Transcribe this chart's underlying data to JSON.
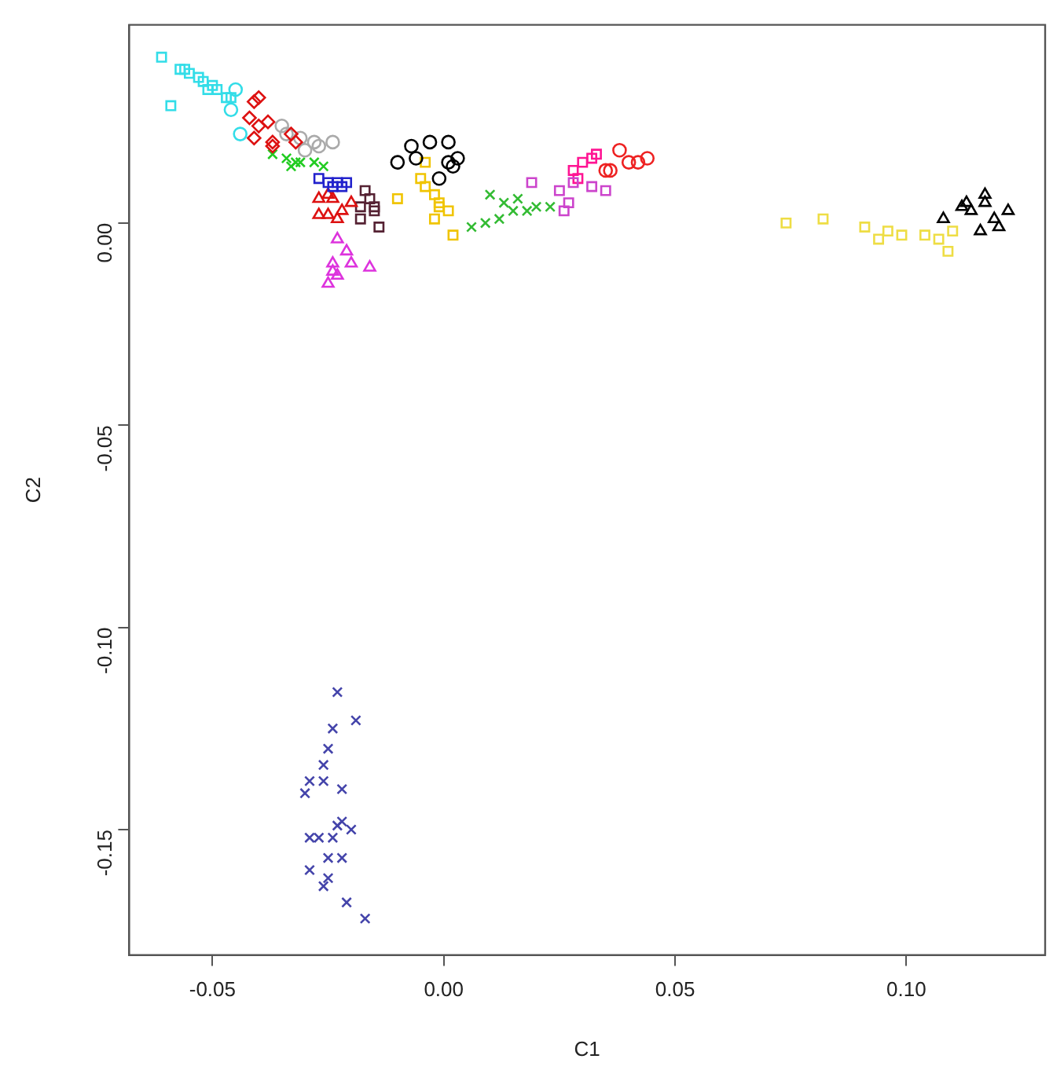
{
  "chart_data": {
    "type": "scatter",
    "xlabel": "C1",
    "ylabel": "C2",
    "legend": false,
    "xlim": [
      -0.068,
      0.13
    ],
    "ylim": [
      -0.181,
      0.049
    ],
    "xticks": [
      {
        "value": -0.05,
        "label": "-0.05"
      },
      {
        "value": 0,
        "label": "0.00"
      },
      {
        "value": 0.05,
        "label": "0.05"
      },
      {
        "value": 0.1,
        "label": "0.10"
      }
    ],
    "yticks": [
      {
        "value": -0.15,
        "label": "-0.15"
      },
      {
        "value": -0.1,
        "label": "-0.10"
      },
      {
        "value": -0.05,
        "label": "-0.05"
      },
      {
        "value": 0,
        "label": "0.00"
      }
    ],
    "series": [
      {
        "color": "#33dde8",
        "marker": "square",
        "x": [
          -0.061,
          -0.059,
          -0.057,
          -0.056,
          -0.055,
          -0.053,
          -0.052,
          -0.05,
          -0.049,
          -0.047,
          -0.046,
          -0.051
        ],
        "values": [
          0.041,
          0.029,
          0.038,
          0.038,
          0.037,
          0.036,
          0.035,
          0.034,
          0.033,
          0.031,
          0.031,
          0.033
        ]
      },
      {
        "color": "#33dde8",
        "marker": "circle",
        "x": [
          -0.045,
          -0.044,
          -0.046
        ],
        "values": [
          0.033,
          0.022,
          0.028
        ]
      },
      {
        "color": "#dd1111",
        "marker": "diamond",
        "x": [
          -0.04,
          -0.041,
          -0.042,
          -0.04,
          -0.038,
          -0.041,
          -0.037,
          -0.037,
          -0.033,
          -0.032
        ],
        "values": [
          0.031,
          0.03,
          0.026,
          0.024,
          0.025,
          0.021,
          0.02,
          0.019,
          0.022,
          0.02
        ]
      },
      {
        "color": "#aaaaaa",
        "marker": "circle",
        "x": [
          -0.035,
          -0.031,
          -0.028,
          -0.027,
          -0.024,
          -0.03,
          -0.034
        ],
        "values": [
          0.024,
          0.021,
          0.02,
          0.019,
          0.02,
          0.018,
          0.022
        ]
      },
      {
        "color": "#22cc22",
        "marker": "cross",
        "x": [
          -0.037,
          -0.034,
          -0.032,
          -0.031,
          -0.028,
          -0.026,
          -0.033
        ],
        "values": [
          0.017,
          0.016,
          0.015,
          0.015,
          0.015,
          0.014,
          0.014
        ]
      },
      {
        "color": "#2222cc",
        "marker": "square",
        "x": [
          -0.027,
          -0.025,
          -0.023,
          -0.021,
          -0.022,
          -0.024
        ],
        "values": [
          0.011,
          0.01,
          0.01,
          0.01,
          0.009,
          0.009
        ]
      },
      {
        "color": "#dd1111",
        "marker": "triangle",
        "x": [
          -0.027,
          -0.025,
          -0.024,
          -0.027,
          -0.025,
          -0.022,
          -0.02,
          -0.023
        ],
        "values": [
          0.006,
          0.007,
          0.006,
          0.002,
          0.002,
          0.003,
          0.005,
          0.001
        ]
      },
      {
        "color": "#552233",
        "marker": "square",
        "x": [
          -0.017,
          -0.016,
          -0.018,
          -0.015,
          -0.014,
          -0.018,
          -0.015
        ],
        "values": [
          0.008,
          0.006,
          0.004,
          0.003,
          -0.001,
          0.001,
          0.004
        ]
      },
      {
        "color": "#dd33dd",
        "marker": "triangle",
        "x": [
          -0.023,
          -0.024,
          -0.024,
          -0.021,
          -0.02,
          -0.016,
          -0.025,
          -0.023
        ],
        "values": [
          -0.004,
          -0.01,
          -0.012,
          -0.007,
          -0.01,
          -0.011,
          -0.015,
          -0.013
        ]
      },
      {
        "color": "#000000",
        "marker": "circle",
        "x": [
          -0.01,
          -0.007,
          -0.003,
          0.001,
          0.003,
          0.001,
          0.002,
          -0.006,
          -0.001
        ],
        "values": [
          0.015,
          0.019,
          0.02,
          0.02,
          0.016,
          0.015,
          0.014,
          0.016,
          0.011
        ]
      },
      {
        "color": "#f0c400",
        "marker": "square",
        "x": [
          -0.01,
          -0.005,
          -0.004,
          -0.004,
          -0.002,
          -0.001,
          -0.002,
          0.001,
          0.002,
          -0.001
        ],
        "values": [
          0.006,
          0.011,
          0.009,
          0.015,
          0.007,
          0.004,
          0.001,
          0.003,
          -0.003,
          0.005
        ]
      },
      {
        "color": "#33bb33",
        "marker": "cross",
        "x": [
          0.006,
          0.009,
          0.01,
          0.013,
          0.016,
          0.018,
          0.02,
          0.023,
          0.015,
          0.012
        ],
        "values": [
          -0.001,
          0.0,
          0.007,
          0.005,
          0.006,
          0.003,
          0.004,
          0.004,
          0.003,
          0.001
        ]
      },
      {
        "color": "#cc44cc",
        "marker": "square",
        "x": [
          0.019,
          0.026,
          0.027,
          0.025,
          0.028,
          0.032,
          0.035
        ],
        "values": [
          0.01,
          0.003,
          0.005,
          0.008,
          0.01,
          0.009,
          0.008
        ]
      },
      {
        "color": "#ff1493",
        "marker": "square",
        "x": [
          0.028,
          0.03,
          0.032,
          0.033,
          0.029
        ],
        "values": [
          0.013,
          0.015,
          0.016,
          0.017,
          0.011
        ]
      },
      {
        "color": "#ee2222",
        "marker": "circle",
        "x": [
          0.036,
          0.038,
          0.04,
          0.042,
          0.044,
          0.035
        ],
        "values": [
          0.013,
          0.018,
          0.015,
          0.015,
          0.016,
          0.013
        ]
      },
      {
        "color": "#eedd44",
        "marker": "square",
        "x": [
          0.074,
          0.082,
          0.091,
          0.094,
          0.096,
          0.099,
          0.104,
          0.107,
          0.109,
          0.11
        ],
        "values": [
          0.0,
          0.001,
          -0.001,
          -0.004,
          -0.002,
          -0.003,
          -0.003,
          -0.004,
          -0.007,
          -0.002
        ]
      },
      {
        "color": "#000000",
        "marker": "triangle",
        "x": [
          0.108,
          0.112,
          0.114,
          0.117,
          0.117,
          0.119,
          0.122,
          0.116,
          0.12,
          0.113
        ],
        "values": [
          0.001,
          0.004,
          0.003,
          0.007,
          0.005,
          0.001,
          0.003,
          -0.002,
          -0.001,
          0.005
        ]
      },
      {
        "color": "#4444aa",
        "marker": "cross",
        "x": [
          -0.023,
          -0.019,
          -0.024,
          -0.025,
          -0.026,
          -0.029,
          -0.03,
          -0.026,
          -0.022,
          -0.029,
          -0.027,
          -0.024,
          -0.023,
          -0.022,
          -0.02,
          -0.025,
          -0.022,
          -0.029,
          -0.026,
          -0.025,
          -0.021,
          -0.017
        ],
        "values": [
          -0.116,
          -0.123,
          -0.125,
          -0.13,
          -0.134,
          -0.138,
          -0.141,
          -0.138,
          -0.14,
          -0.152,
          -0.152,
          -0.152,
          -0.149,
          -0.148,
          -0.15,
          -0.157,
          -0.157,
          -0.16,
          -0.164,
          -0.162,
          -0.168,
          -0.172
        ]
      }
    ]
  }
}
